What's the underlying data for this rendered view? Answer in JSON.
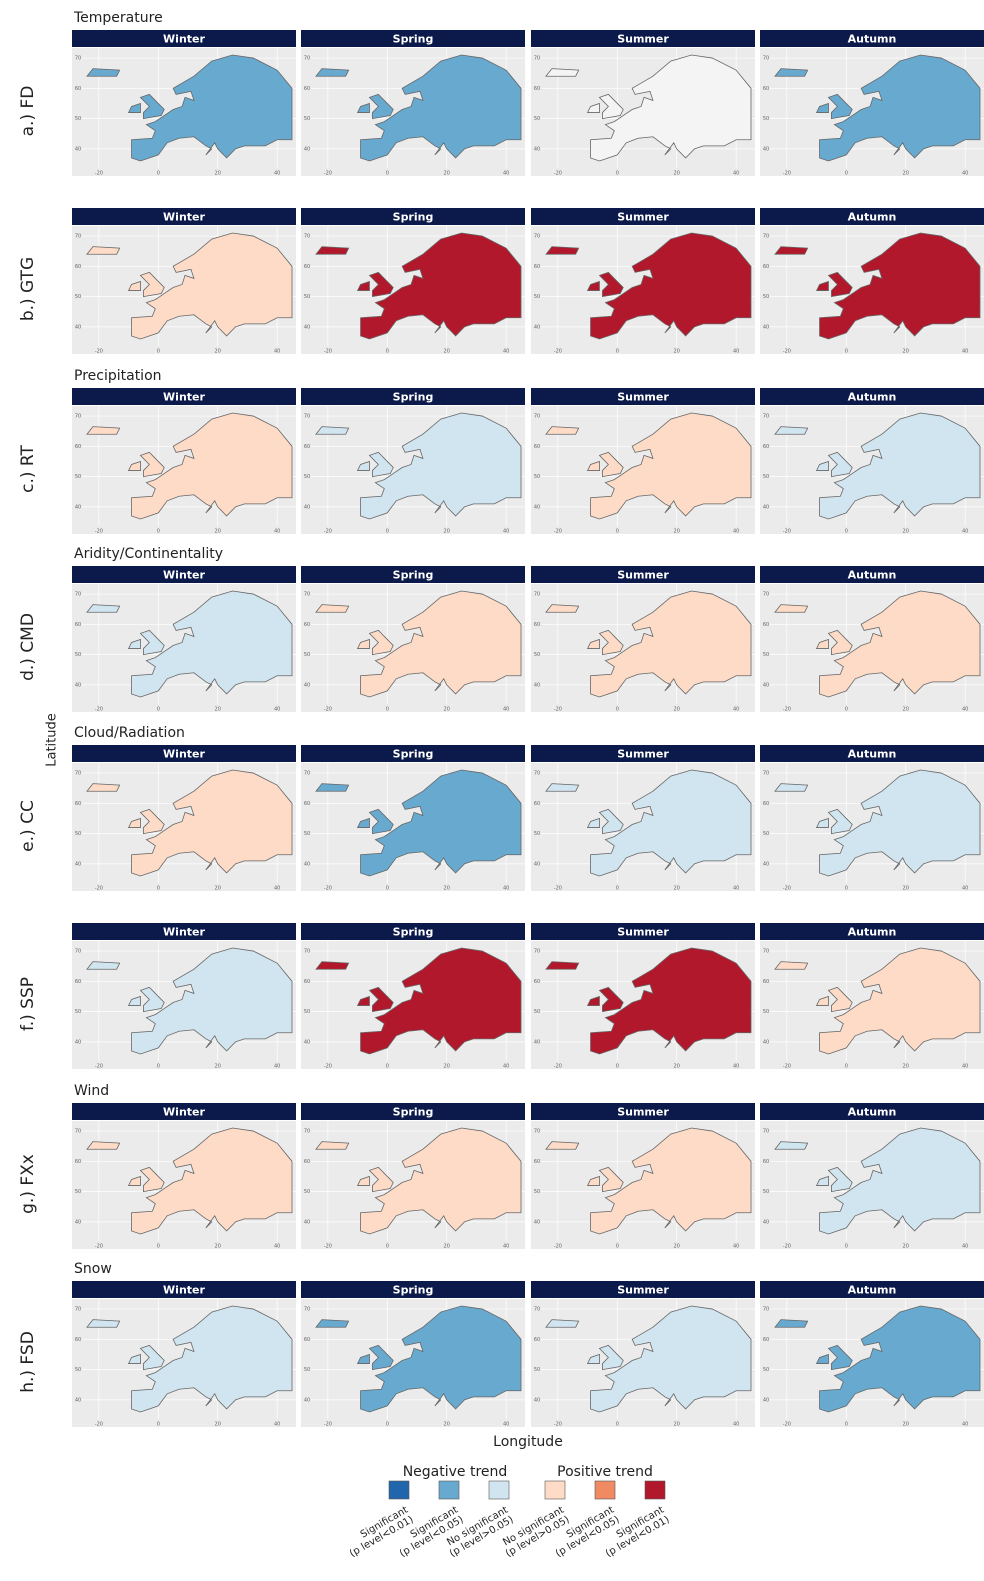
{
  "axis": {
    "x_label": "Longitude",
    "y_label": "Latitude",
    "xticks": [
      -20,
      0,
      20,
      40
    ],
    "yticks": [
      40,
      50,
      60,
      70
    ]
  },
  "seasons": [
    "Winter",
    "Spring",
    "Summer",
    "Autumn"
  ],
  "rows": [
    {
      "group": "Temperature",
      "label": "a.) FD"
    },
    {
      "label": "b.) GTG"
    },
    {
      "group": "Precipitation",
      "label": "c.) RT"
    },
    {
      "group": "Aridity/Continentality",
      "label": "d.) CMD"
    },
    {
      "group": "Cloud/Radiation",
      "label": "e.) CC"
    },
    {
      "label": "f.) SSP"
    },
    {
      "group": "Wind",
      "label": "g.) FXx"
    },
    {
      "group": "Snow",
      "label": "h.) FSD"
    }
  ],
  "legend": {
    "negative": "Negative trend",
    "positive": "Positive trend",
    "items": [
      {
        "label": [
          "Significant",
          "(p level<0.01)"
        ],
        "color": "#2166ac"
      },
      {
        "label": [
          "Significant",
          "(p level<0.05)"
        ],
        "color": "#67a9cf"
      },
      {
        "label": [
          "No significant",
          "(p level>0.05)"
        ],
        "color": "#d1e5f0"
      },
      {
        "label": [
          "No significant",
          "(p level>0.05)"
        ],
        "color": "#fddbc7"
      },
      {
        "label": [
          "Significant",
          "(p level<0.05)"
        ],
        "color": "#ef8a62"
      },
      {
        "label": [
          "Significant",
          "(p level<0.01)"
        ],
        "color": "#b2182b"
      }
    ]
  }
}
